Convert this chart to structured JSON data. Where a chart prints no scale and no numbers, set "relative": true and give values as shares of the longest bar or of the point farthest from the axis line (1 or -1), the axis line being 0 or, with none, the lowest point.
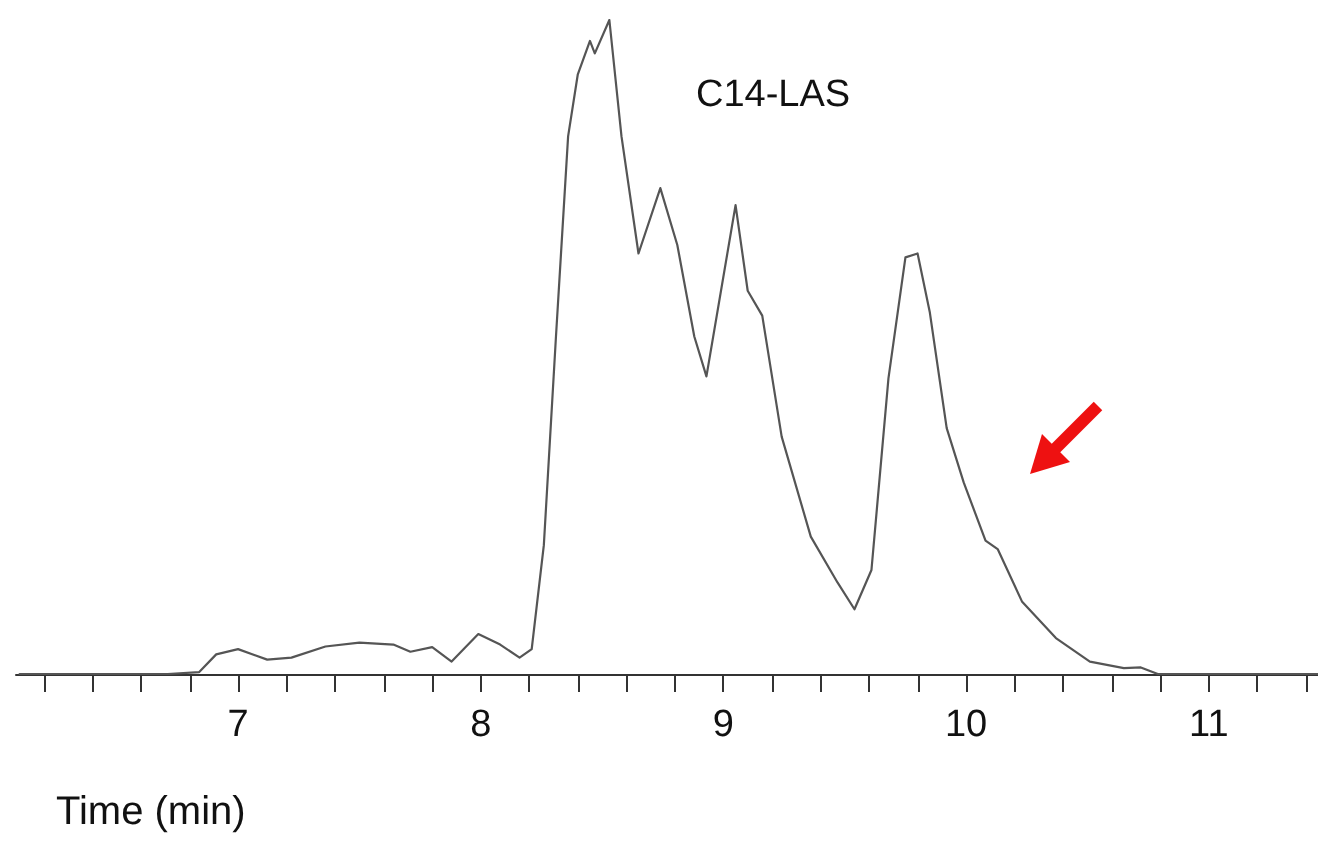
{
  "chart_data": {
    "type": "line",
    "relative": true,
    "xlabel": "Time (min)",
    "annotations": [
      "C14-LAS"
    ],
    "xlim": [
      6.085,
      11.45
    ],
    "xticks": [
      {
        "value": 6.2,
        "label": null
      },
      {
        "value": 6.4,
        "label": null
      },
      {
        "value": 6.6,
        "label": null
      },
      {
        "value": 6.8,
        "label": null
      },
      7,
      {
        "value": 7.2,
        "label": null
      },
      {
        "value": 7.4,
        "label": null
      },
      {
        "value": 7.6,
        "label": null
      },
      {
        "value": 7.8,
        "label": null
      },
      8,
      {
        "value": 8.2,
        "label": null
      },
      {
        "value": 8.4,
        "label": null
      },
      {
        "value": 8.6,
        "label": null
      },
      {
        "value": 8.8,
        "label": null
      },
      9,
      {
        "value": 9.2,
        "label": null
      },
      {
        "value": 9.4,
        "label": null
      },
      {
        "value": 9.6,
        "label": null
      },
      {
        "value": 9.8,
        "label": null
      },
      10,
      {
        "value": 10.2,
        "label": null
      },
      {
        "value": 10.4,
        "label": null
      },
      {
        "value": 10.6,
        "label": null
      },
      {
        "value": 10.8,
        "label": null
      },
      11,
      {
        "value": 11.2,
        "label": null
      },
      {
        "value": 11.4,
        "label": null
      }
    ],
    "grid": false,
    "marker": "none",
    "line_style": "solid",
    "series": [
      {
        "color": "#555555",
        "x": [
          6.1,
          6.71,
          6.84,
          6.91,
          7.0,
          7.12,
          7.22,
          7.36,
          7.5,
          7.64,
          7.71,
          7.8,
          7.88,
          7.99,
          8.08,
          8.16,
          8.21,
          8.26,
          8.31,
          8.36,
          8.4,
          8.45,
          8.47,
          8.53,
          8.58,
          8.65,
          8.74,
          8.81,
          8.88,
          8.93,
          9.05,
          9.1,
          9.16,
          9.24,
          9.36,
          9.47,
          9.54,
          9.61,
          9.68,
          9.75,
          9.8,
          9.85,
          9.92,
          9.99,
          10.08,
          10.13,
          10.23,
          10.37,
          10.51,
          10.65,
          10.72,
          10.79,
          11.03,
          11.45
        ],
        "values": [
          0,
          0,
          0.003,
          0.03,
          0.038,
          0.022,
          0.025,
          0.042,
          0.048,
          0.045,
          0.034,
          0.041,
          0.019,
          0.061,
          0.045,
          0.025,
          0.038,
          0.197,
          0.516,
          0.822,
          0.917,
          0.968,
          0.949,
          1.0,
          0.822,
          0.643,
          0.743,
          0.656,
          0.516,
          0.455,
          0.717,
          0.586,
          0.548,
          0.363,
          0.21,
          0.14,
          0.099,
          0.159,
          0.452,
          0.637,
          0.643,
          0.554,
          0.376,
          0.293,
          0.204,
          0.191,
          0.111,
          0.055,
          0.019,
          0.009,
          0.01,
          0,
          0,
          0
        ]
      }
    ]
  }
}
